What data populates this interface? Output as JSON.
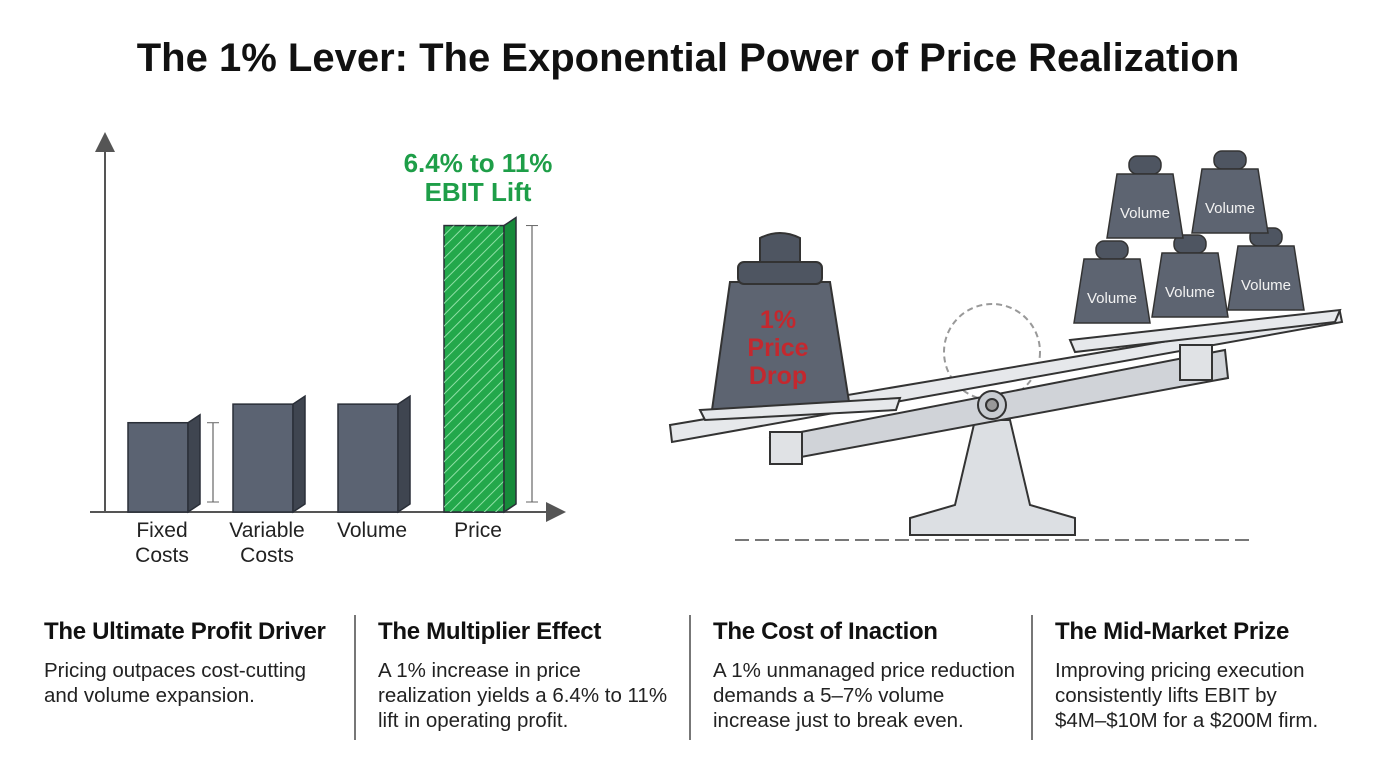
{
  "title": "The 1% Lever: The Exponential Power of Price Realization",
  "chart_data": {
    "type": "bar",
    "categories": [
      "Fixed Costs",
      "Variable Costs",
      "Volume",
      "Price"
    ],
    "values": [
      24,
      29,
      29,
      77
    ],
    "colors": [
      "#5b6372",
      "#5b6372",
      "#5b6372",
      "#23a84b"
    ],
    "ylim": [
      0,
      100
    ],
    "annotation": [
      "6.4% to 11%",
      "EBIT Lift"
    ]
  },
  "illustration": {
    "left_weight": [
      "1%",
      "Price",
      "Drop"
    ],
    "right_weights": [
      "Volume",
      "Volume",
      "Volume",
      "Volume",
      "Volume"
    ]
  },
  "cards": [
    {
      "heading": "The Ultimate Profit Driver",
      "body": [
        "Pricing outpaces cost-cutting",
        "and volume expansion."
      ]
    },
    {
      "heading": "The Multiplier Effect",
      "body": [
        "A 1% increase in price",
        "realization yields a 6.4% to 11%",
        "lift in operating profit."
      ]
    },
    {
      "heading": "The Cost of Inaction",
      "body": [
        "A 1% unmanaged price reduction",
        "demands a 5–7% volume",
        "increase just to break even."
      ]
    },
    {
      "heading": "The Mid-Market Prize",
      "body": [
        "Improving pricing execution",
        "consistently lifts EBIT by",
        "$4M–$10M for a $200M firm."
      ]
    }
  ]
}
